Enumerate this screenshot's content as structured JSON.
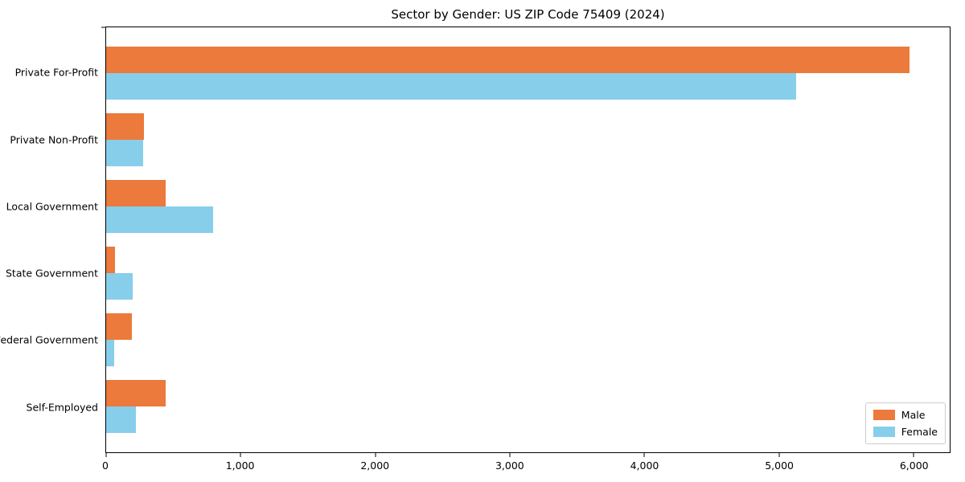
{
  "title": "Sector by Gender: US ZIP Code 75409 (2024)",
  "chart_data": {
    "type": "bar",
    "orientation": "horizontal",
    "title": "Sector by Gender: US ZIP Code 75409 (2024)",
    "categories": [
      "Private For-Profit",
      "Private Non-Profit",
      "Local Government",
      "State Government",
      "Federal Government",
      "Self-Employed"
    ],
    "series": [
      {
        "name": "Male",
        "color": "#EB7A3C",
        "values": [
          5970,
          280,
          440,
          65,
          190,
          440
        ]
      },
      {
        "name": "Female",
        "color": "#87CEEB",
        "values": [
          5130,
          275,
          795,
          200,
          60,
          220
        ]
      }
    ],
    "xlabel": "",
    "ylabel": "",
    "xlim": [
      0,
      6270
    ],
    "x_tick_values": [
      0,
      1000,
      2000,
      3000,
      4000,
      5000,
      6000
    ],
    "x_ticks": [
      "0",
      "1,000",
      "2,000",
      "3,000",
      "4,000",
      "5,000",
      "6,000"
    ],
    "grid": false,
    "legend_position": "lower right",
    "plot_border_color": "#000000",
    "background_color": "#ffffff"
  }
}
